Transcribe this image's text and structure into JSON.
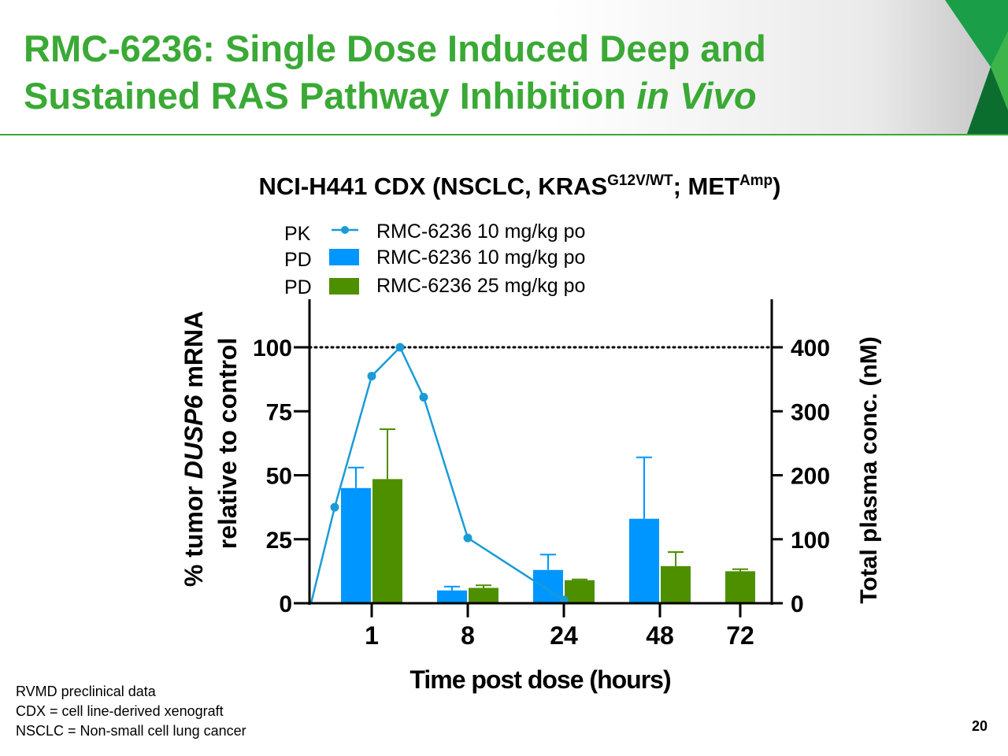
{
  "slide": {
    "title_line1": "RMC-6236: Single Dose Induced Deep and",
    "title_line2": "Sustained RAS Pathway Inhibition ",
    "title_line2_italic": "in Vivo",
    "footnotes": [
      "RVMD preclinical data",
      "CDX = cell line-derived xenograft",
      "NSCLC = Non-small cell lung cancer"
    ],
    "page_number": "20",
    "accent_color": "#3aa935"
  },
  "chart_data": {
    "type": "bar",
    "title_parts": {
      "main": "NCI-H441 CDX (NSCLC, KRAS",
      "sup1": "G12V/WT",
      "mid": "; MET",
      "sup2": "Amp",
      "end": ")"
    },
    "categories": [
      "1",
      "8",
      "24",
      "48",
      "72"
    ],
    "xlabel": "Time post dose (hours)",
    "ylabel_parts": {
      "pre": "% tumor ",
      "italic": "DUSP6",
      "post": " mRNA",
      "line2": "relative to control"
    },
    "y2label": "Total plasma conc. (nM)",
    "ylim": [
      0,
      100
    ],
    "yticks": [
      "0",
      "25",
      "50",
      "75",
      "100"
    ],
    "y2lim": [
      0,
      400
    ],
    "y2ticks": [
      "0",
      "100",
      "200",
      "300",
      "400"
    ],
    "reference_line": {
      "y": 100,
      "style": "dotted"
    },
    "legend_placement": "top",
    "series": [
      {
        "name": "RMC-6236 10 mg/kg po",
        "legend_prefix": "PD",
        "kind": "bar",
        "color": "#0096ff",
        "values": [
          45,
          5,
          13,
          33,
          null
        ],
        "error_upper": [
          53,
          6.5,
          19,
          57,
          null
        ]
      },
      {
        "name": "RMC-6236 25 mg/kg po",
        "legend_prefix": "PD",
        "kind": "bar",
        "color": "#4e8f00",
        "values": [
          48.5,
          6,
          9,
          14.5,
          12.5
        ],
        "error_upper": [
          68,
          7,
          9.3,
          20,
          13.3
        ]
      },
      {
        "name": "RMC-6236 10 mg/kg po",
        "legend_prefix": "PK",
        "kind": "line",
        "axis": "right",
        "color": "#1a9bd7",
        "x": [
          0,
          0.5,
          1,
          2,
          4,
          8,
          24
        ],
        "values": [
          0,
          150,
          355,
          400,
          322,
          102,
          5
        ]
      }
    ]
  }
}
